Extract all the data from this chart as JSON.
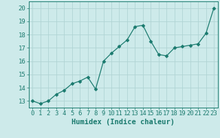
{
  "x": [
    0,
    1,
    2,
    3,
    4,
    5,
    6,
    7,
    8,
    9,
    10,
    11,
    12,
    13,
    14,
    15,
    16,
    17,
    18,
    19,
    20,
    21,
    22,
    23
  ],
  "y": [
    13.0,
    12.8,
    13.0,
    13.5,
    13.8,
    14.3,
    14.5,
    14.8,
    13.9,
    16.0,
    16.6,
    17.1,
    17.6,
    18.6,
    18.7,
    17.5,
    16.5,
    16.4,
    17.0,
    17.1,
    17.2,
    17.3,
    18.1,
    20.0
  ],
  "line_color": "#1a7a6e",
  "marker": "D",
  "marker_size": 2.5,
  "bg_color": "#cdeaea",
  "grid_color": "#b0d4d4",
  "xlabel": "Humidex (Indice chaleur)",
  "xlim": [
    -0.5,
    23.5
  ],
  "ylim": [
    12.5,
    20.5
  ],
  "xtick_labels": [
    "0",
    "1",
    "2",
    "3",
    "4",
    "5",
    "6",
    "7",
    "8",
    "9",
    "10",
    "11",
    "12",
    "13",
    "14",
    "15",
    "16",
    "17",
    "18",
    "19",
    "20",
    "21",
    "22",
    "23"
  ],
  "yticks": [
    13,
    14,
    15,
    16,
    17,
    18,
    19,
    20
  ],
  "xlabel_fontsize": 7.5,
  "tick_fontsize": 6.5
}
